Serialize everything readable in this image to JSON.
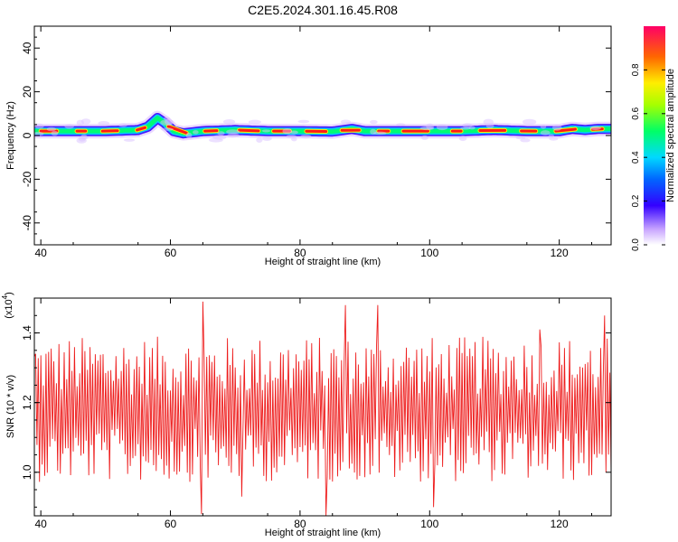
{
  "title": "C2E5.2024.301.16.45.R08",
  "chart_data": [
    {
      "type": "heatmap",
      "xlabel": "Height of straight line (km)",
      "ylabel": "Frequency (Hz)",
      "xlim": [
        39,
        128
      ],
      "ylim": [
        -50,
        50
      ],
      "xticks": [
        40,
        60,
        80,
        100,
        120
      ],
      "yticks": [
        -40,
        -20,
        0,
        20,
        40
      ],
      "colorbar": {
        "label": "Normalized spectral amplitude",
        "range": [
          0,
          1
        ],
        "ticks": [
          0.0,
          0.2,
          0.4,
          0.6,
          0.8
        ],
        "tick_labels": [
          "0.0",
          "0.2",
          "0.4",
          "0.6",
          "0.8"
        ]
      },
      "ridge": [
        [
          39,
          2
        ],
        [
          45,
          2
        ],
        [
          50,
          2
        ],
        [
          55,
          2.5
        ],
        [
          56.5,
          4
        ],
        [
          58,
          8
        ],
        [
          59,
          6
        ],
        [
          60.5,
          2
        ],
        [
          62,
          1
        ],
        [
          65,
          2
        ],
        [
          70,
          2.5
        ],
        [
          75,
          2
        ],
        [
          80,
          2
        ],
        [
          85,
          1.8
        ],
        [
          88,
          3
        ],
        [
          90,
          2
        ],
        [
          95,
          2
        ],
        [
          100,
          2
        ],
        [
          105,
          2
        ],
        [
          110,
          2.5
        ],
        [
          115,
          2
        ],
        [
          120,
          2
        ],
        [
          122,
          3
        ],
        [
          124,
          2.5
        ],
        [
          126,
          3
        ],
        [
          128,
          3
        ]
      ]
    },
    {
      "type": "line",
      "xlabel": "Height of straight line (km)",
      "ylabel": "SNR (10 * v/v)",
      "scale_label": "(x10",
      "scale_exponent": "4",
      "xlim": [
        39,
        128
      ],
      "ylim": [
        0.875,
        1.5
      ],
      "xticks": [
        40,
        60,
        80,
        100,
        120
      ],
      "yticks": [
        1.0,
        1.2,
        1.4
      ],
      "ytick_labels": [
        "1.0",
        "1.2",
        "1.4"
      ],
      "color": "#ee1c1c",
      "mean": 1.17,
      "spikes": [
        [
          39.2,
          1.34
        ],
        [
          64.8,
          0.88
        ],
        [
          65.0,
          1.49
        ],
        [
          71.0,
          0.93
        ],
        [
          84.0,
          0.875
        ],
        [
          87.0,
          1.48
        ],
        [
          92.0,
          1.48
        ],
        [
          100.6,
          0.9
        ],
        [
          117.0,
          1.41
        ],
        [
          127.0,
          1.45
        ],
        [
          128,
          1.0
        ]
      ]
    }
  ]
}
